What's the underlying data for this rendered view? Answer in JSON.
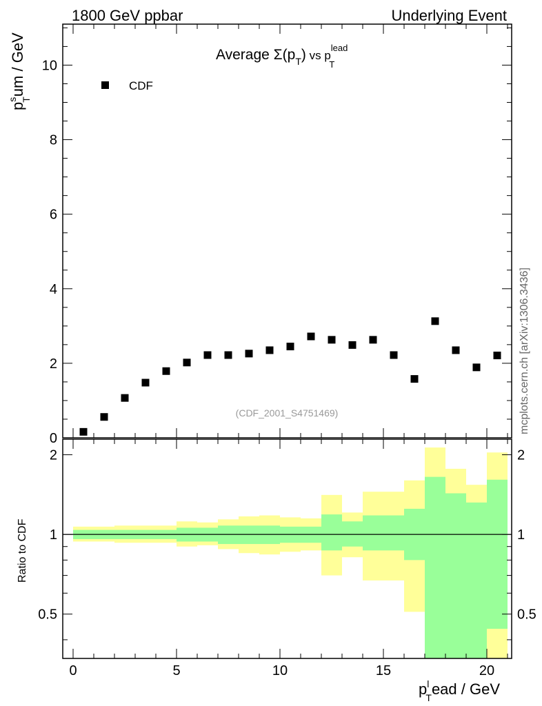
{
  "header": {
    "left": "1800 GeV ppbar",
    "right": "Underlying Event"
  },
  "side_label": "mcplots.cern.ch [arXiv:1306.3436]",
  "colors": {
    "inner_band": "#99ff99",
    "outer_band": "#ffff99",
    "marker": "#000000",
    "analysis_tag": "#999999"
  },
  "chart_data": [
    {
      "type": "scatter",
      "title": {
        "main": "Average ",
        "sigma": "Σ(p",
        "sub1": "T",
        "close": ")",
        "vs": " vs p",
        "sup": "lead",
        "sub2": "T"
      },
      "ylabel": {
        "p": "p",
        "sup": "s",
        "sub": "T",
        "rest": "um / GeV"
      },
      "xlim": [
        -0.5,
        21.2
      ],
      "ylim": [
        0,
        11.1
      ],
      "x_ticks": [
        0,
        5,
        10,
        15,
        20
      ],
      "y_ticks": [
        0,
        2,
        4,
        6,
        8,
        10
      ],
      "legend": {
        "position": "top-left",
        "entries": [
          "CDF"
        ]
      },
      "analysis_tag": "(CDF_2001_S4751469)",
      "series": [
        {
          "name": "CDF",
          "x": [
            0.5,
            1.5,
            2.5,
            3.5,
            4.5,
            5.5,
            6.5,
            7.5,
            8.5,
            9.5,
            10.5,
            11.5,
            12.5,
            13.5,
            14.5,
            15.5,
            16.5,
            17.5,
            18.5,
            19.5,
            20.5
          ],
          "y": [
            0.16,
            0.56,
            1.07,
            1.48,
            1.79,
            2.02,
            2.22,
            2.22,
            2.26,
            2.35,
            2.45,
            2.72,
            2.63,
            2.49,
            2.63,
            2.22,
            1.58,
            3.13,
            2.35,
            1.89,
            2.21
          ]
        }
      ]
    },
    {
      "type": "area",
      "ylabel": "Ratio to CDF",
      "xlabel": {
        "p": "p",
        "sup": "l",
        "sub": "T",
        "rest": "ead / GeV"
      },
      "xlim": [
        -0.5,
        21.2
      ],
      "ylim": [
        0.34,
        2.29
      ],
      "y_scale": "log",
      "x_ticks": [
        0,
        5,
        10,
        15,
        20
      ],
      "y_ticks": [
        "0.5",
        "1",
        "2"
      ],
      "reference_line": 1,
      "bins": [
        0,
        1,
        2,
        3,
        4,
        5,
        6,
        7,
        8,
        9,
        10,
        11,
        12,
        13,
        14,
        15,
        16,
        17,
        18,
        19,
        20,
        21
      ],
      "inner_band": {
        "low": [
          0.96,
          0.96,
          0.96,
          0.96,
          0.96,
          0.94,
          0.94,
          0.92,
          0.92,
          0.92,
          0.93,
          0.93,
          0.87,
          0.9,
          0.87,
          0.87,
          0.8,
          0.34,
          0.34,
          0.34,
          0.44
        ],
        "high": [
          1.04,
          1.04,
          1.04,
          1.04,
          1.04,
          1.06,
          1.06,
          1.08,
          1.08,
          1.08,
          1.07,
          1.07,
          1.19,
          1.12,
          1.18,
          1.18,
          1.25,
          1.65,
          1.43,
          1.32,
          1.61
        ]
      },
      "outer_band": {
        "low": [
          0.94,
          0.94,
          0.93,
          0.93,
          0.93,
          0.9,
          0.91,
          0.88,
          0.85,
          0.84,
          0.86,
          0.87,
          0.7,
          0.82,
          0.67,
          0.67,
          0.51,
          0.34,
          0.34,
          0.34,
          0.34
        ],
        "high": [
          1.07,
          1.07,
          1.08,
          1.08,
          1.08,
          1.12,
          1.11,
          1.14,
          1.17,
          1.18,
          1.16,
          1.15,
          1.41,
          1.21,
          1.45,
          1.45,
          1.6,
          2.13,
          1.77,
          1.54,
          2.04
        ]
      }
    }
  ]
}
